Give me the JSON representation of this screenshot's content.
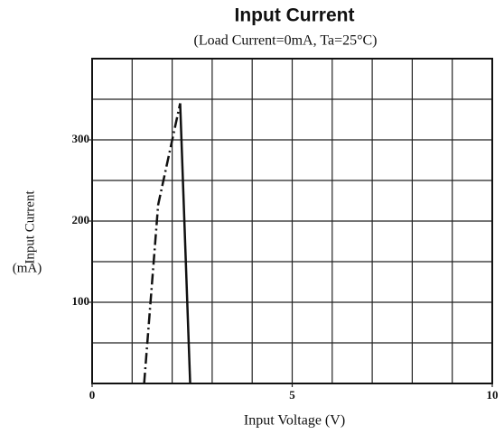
{
  "chart_data": {
    "type": "line",
    "title": "Input Current",
    "subtitle": "(Load Current=0mA, Ta=25°C)",
    "x_label": "Input Voltage (V)",
    "y_label": "Input Current",
    "y_unit": "(mA)",
    "xlim": [
      0,
      10
    ],
    "xticks": [
      0,
      5,
      10
    ],
    "ylim": [
      0,
      400
    ],
    "yticks": [
      100,
      200,
      300
    ],
    "xgrid": [
      0,
      1,
      2,
      3,
      4,
      5,
      6,
      7,
      8,
      9,
      10
    ],
    "ygrid": [
      0,
      50,
      100,
      150,
      200,
      250,
      300,
      350,
      400
    ],
    "grid": true,
    "series": [
      {
        "style": "dashdot",
        "color": "#111111",
        "x": [
          1.3,
          1.65,
          2.2
        ],
        "values": [
          0,
          220,
          345
        ]
      },
      {
        "style": "solid",
        "color": "#111111",
        "x": [
          2.2,
          2.45
        ],
        "values": [
          345,
          0
        ]
      }
    ]
  }
}
